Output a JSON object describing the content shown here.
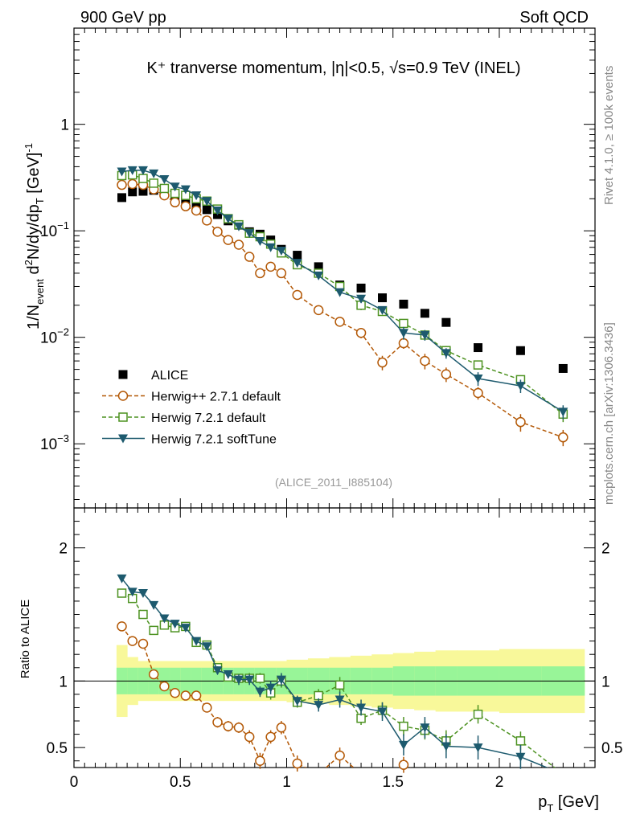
{
  "header": {
    "left": "900 GeV pp",
    "right": "Soft QCD"
  },
  "side_labels": {
    "rivet": "Rivet 4.1.0, ≥ 100k events",
    "mcplots": "mcplots.cern.ch [arXiv:1306.3436]"
  },
  "chart_data": [
    {
      "type": "scatter",
      "panel": "main",
      "title": "K⁺ tranverse momentum, |η|<0.5, √s=0.9 TeV (INEL)",
      "xlabel": "p_T [GeV]",
      "ylabel": "1/N_event d²N/dy/dp_T [GeV]⁻¹",
      "yscale": "log",
      "xlim": [
        0,
        2.45
      ],
      "ylim": [
        0.00025,
        8
      ],
      "yticks": [
        {
          "v": 0.001,
          "label": "10⁻³"
        },
        {
          "v": 0.01,
          "label": "10⁻²"
        },
        {
          "v": 0.1,
          "label": "10⁻¹"
        },
        {
          "v": 1,
          "label": "1"
        }
      ],
      "watermark": "(ALICE_2011_I885104)",
      "legend_position": "bottom-left",
      "x": [
        0.225,
        0.275,
        0.325,
        0.375,
        0.425,
        0.475,
        0.525,
        0.575,
        0.625,
        0.675,
        0.725,
        0.775,
        0.825,
        0.875,
        0.925,
        0.975,
        1.05,
        1.15,
        1.25,
        1.35,
        1.45,
        1.55,
        1.65,
        1.75,
        1.9,
        2.1,
        2.3
      ],
      "series": [
        {
          "name": "ALICE",
          "marker": "square-filled",
          "color": "#000000",
          "line": false,
          "values": [
            0.205,
            0.232,
            0.235,
            0.24,
            0.225,
            0.205,
            0.19,
            0.172,
            0.158,
            0.142,
            0.124,
            0.113,
            0.098,
            0.093,
            0.082,
            0.067,
            0.059,
            0.046,
            0.031,
            0.029,
            0.0235,
            0.0205,
            0.0168,
            0.0138,
            0.008,
            0.0075,
            0.0051
          ],
          "errors": [
            0,
            0,
            0,
            0,
            0,
            0,
            0,
            0,
            0,
            0,
            0,
            0,
            0,
            0,
            0,
            0,
            0,
            0,
            0,
            0,
            0,
            0,
            0,
            0,
            0,
            0,
            0
          ]
        },
        {
          "name": "Herwig++ 2.7.1 default",
          "marker": "circle-open",
          "color": "#b35806",
          "line": "dashed",
          "values": [
            0.27,
            0.275,
            0.27,
            0.245,
            0.215,
            0.185,
            0.17,
            0.155,
            0.125,
            0.098,
            0.082,
            0.074,
            0.057,
            0.04,
            0.046,
            0.04,
            0.025,
            0.018,
            0.014,
            0.011,
            0.0058,
            0.0088,
            0.006,
            0.0045,
            0.003,
            0.0016,
            0.00115
          ],
          "errors": [
            0,
            0,
            0,
            0,
            0,
            0,
            0,
            0,
            0,
            0,
            0,
            0,
            0,
            0.004,
            0.004,
            0,
            0.002,
            0,
            0,
            0.0012,
            0.0009,
            0.001,
            0.001,
            0.0007,
            0.0004,
            0.0003,
            0.0002
          ]
        },
        {
          "name": "Herwig 7.2.1 default",
          "marker": "square-open",
          "color": "#4d9221",
          "line": "dashed",
          "values": [
            0.33,
            0.335,
            0.31,
            0.28,
            0.25,
            0.225,
            0.215,
            0.2,
            0.19,
            0.16,
            0.13,
            0.114,
            0.095,
            0.088,
            0.075,
            0.062,
            0.048,
            0.04,
            0.03,
            0.02,
            0.0175,
            0.0135,
            0.0105,
            0.0075,
            0.0055,
            0.004,
            0.0019
          ],
          "errors": [
            0,
            0,
            0,
            0,
            0,
            0,
            0,
            0,
            0,
            0,
            0,
            0,
            0,
            0,
            0,
            0,
            0.002,
            0,
            0,
            0.002,
            0,
            0,
            0.001,
            0.0008,
            0.0005,
            0.0004,
            0.0003
          ]
        },
        {
          "name": "Herwig 7.2.1 softTune",
          "marker": "triangle-down-filled",
          "color": "#1d5a6e",
          "line": "solid",
          "values": [
            0.36,
            0.37,
            0.37,
            0.345,
            0.305,
            0.26,
            0.245,
            0.215,
            0.19,
            0.155,
            0.13,
            0.11,
            0.095,
            0.08,
            0.07,
            0.065,
            0.05,
            0.038,
            0.0265,
            0.023,
            0.018,
            0.011,
            0.0105,
            0.0071,
            0.0041,
            0.0035,
            0.002
          ],
          "errors": [
            0,
            0,
            0,
            0,
            0,
            0,
            0,
            0,
            0,
            0,
            0,
            0,
            0,
            0,
            0,
            0,
            0.002,
            0.002,
            0,
            0.002,
            0,
            0.0015,
            0.0012,
            0.0008,
            0.0006,
            0.0005,
            0.0003
          ]
        }
      ]
    },
    {
      "type": "scatter",
      "panel": "ratio",
      "ylabel": "Ratio to ALICE",
      "yscale": "linear",
      "xlim": [
        0,
        2.45
      ],
      "ylim": [
        0.35,
        2.3
      ],
      "yticks": [
        {
          "v": 0.5,
          "label": "0.5"
        },
        {
          "v": 1,
          "label": "1"
        },
        {
          "v": 2,
          "label": "2"
        }
      ],
      "xticks": [
        {
          "v": 0,
          "label": "0"
        },
        {
          "v": 0.5,
          "label": "0.5"
        },
        {
          "v": 1,
          "label": "1"
        },
        {
          "v": 1.5,
          "label": "1.5"
        },
        {
          "v": 2,
          "label": "2"
        }
      ],
      "bands": {
        "x_edges": [
          0.2,
          0.25,
          0.3,
          0.35,
          0.4,
          0.45,
          0.5,
          0.55,
          0.6,
          0.65,
          0.7,
          0.75,
          0.8,
          0.85,
          0.9,
          0.95,
          1.0,
          1.1,
          1.2,
          1.3,
          1.4,
          1.5,
          1.6,
          1.7,
          1.8,
          2.0,
          2.2,
          2.4
        ],
        "stat_halfwidth": [
          0.1,
          0.1,
          0.1,
          0.1,
          0.1,
          0.1,
          0.1,
          0.1,
          0.1,
          0.1,
          0.1,
          0.1,
          0.1,
          0.1,
          0.1,
          0.1,
          0.1,
          0.1,
          0.1,
          0.1,
          0.1,
          0.11,
          0.11,
          0.11,
          0.11,
          0.11,
          0.11
        ],
        "syst_halfwidth": [
          0.27,
          0.18,
          0.15,
          0.15,
          0.15,
          0.15,
          0.15,
          0.15,
          0.15,
          0.15,
          0.15,
          0.15,
          0.15,
          0.15,
          0.15,
          0.15,
          0.16,
          0.17,
          0.18,
          0.19,
          0.2,
          0.21,
          0.22,
          0.23,
          0.23,
          0.24,
          0.24
        ],
        "stat_color": "#98f598",
        "syst_color": "#f8f89a"
      },
      "x": [
        0.225,
        0.275,
        0.325,
        0.375,
        0.425,
        0.475,
        0.525,
        0.575,
        0.625,
        0.675,
        0.725,
        0.775,
        0.825,
        0.875,
        0.925,
        0.975,
        1.05,
        1.15,
        1.25,
        1.35,
        1.45,
        1.55,
        1.65,
        1.75,
        1.9,
        2.1,
        2.3
      ],
      "series": [
        {
          "name": "Herwig++ 2.7.1 default",
          "color": "#b35806",
          "values": [
            1.41,
            1.3,
            1.28,
            1.05,
            0.96,
            0.91,
            0.89,
            0.89,
            0.8,
            0.69,
            0.66,
            0.65,
            0.58,
            0.4,
            0.58,
            0.65,
            0.38,
            0.3,
            0.44,
            0.3,
            0.25,
            0.37,
            0.3,
            0.3,
            0.3,
            0.2,
            0.2
          ],
          "errors": [
            0,
            0,
            0,
            0,
            0.02,
            0,
            0,
            0.02,
            0.03,
            0.04,
            0.04,
            0.04,
            0.05,
            0.06,
            0.05,
            0.05,
            0.06,
            0.05,
            0.06,
            0.05,
            0.05,
            0.06,
            0.05,
            0.05,
            0.05,
            0.05,
            0.05
          ]
        },
        {
          "name": "Herwig 7.2.1 default",
          "color": "#4d9221",
          "values": [
            1.66,
            1.62,
            1.5,
            1.38,
            1.42,
            1.4,
            1.41,
            1.29,
            1.27,
            1.1,
            1.03,
            1.02,
            1.02,
            1.02,
            0.91,
            1.0,
            0.84,
            0.89,
            0.97,
            0.72,
            0.78,
            0.66,
            0.63,
            0.55,
            0.75,
            0.55,
            0.3
          ],
          "errors": [
            0,
            0,
            0,
            0,
            0,
            0,
            0,
            0,
            0.02,
            0.03,
            0.03,
            0.03,
            0.04,
            0.04,
            0.05,
            0.05,
            0.04,
            0.05,
            0.06,
            0.05,
            0.06,
            0.07,
            0.07,
            0.08,
            0.07,
            0.07,
            0.08
          ]
        },
        {
          "name": "Herwig 7.2.1 softTune",
          "color": "#1d5a6e",
          "values": [
            1.77,
            1.67,
            1.66,
            1.57,
            1.47,
            1.43,
            1.4,
            1.3,
            1.26,
            1.08,
            1.05,
            1.01,
            1.01,
            0.92,
            0.95,
            1.01,
            0.85,
            0.82,
            0.86,
            0.8,
            0.77,
            0.52,
            0.65,
            0.51,
            0.5,
            0.43,
            0.3
          ],
          "errors": [
            0,
            0,
            0,
            0,
            0,
            0,
            0,
            0,
            0.02,
            0.03,
            0.03,
            0.04,
            0.04,
            0.04,
            0.05,
            0.05,
            0.04,
            0.05,
            0.06,
            0.06,
            0.07,
            0.08,
            0.08,
            0.09,
            0.09,
            0.09,
            0.1
          ]
        }
      ]
    }
  ]
}
